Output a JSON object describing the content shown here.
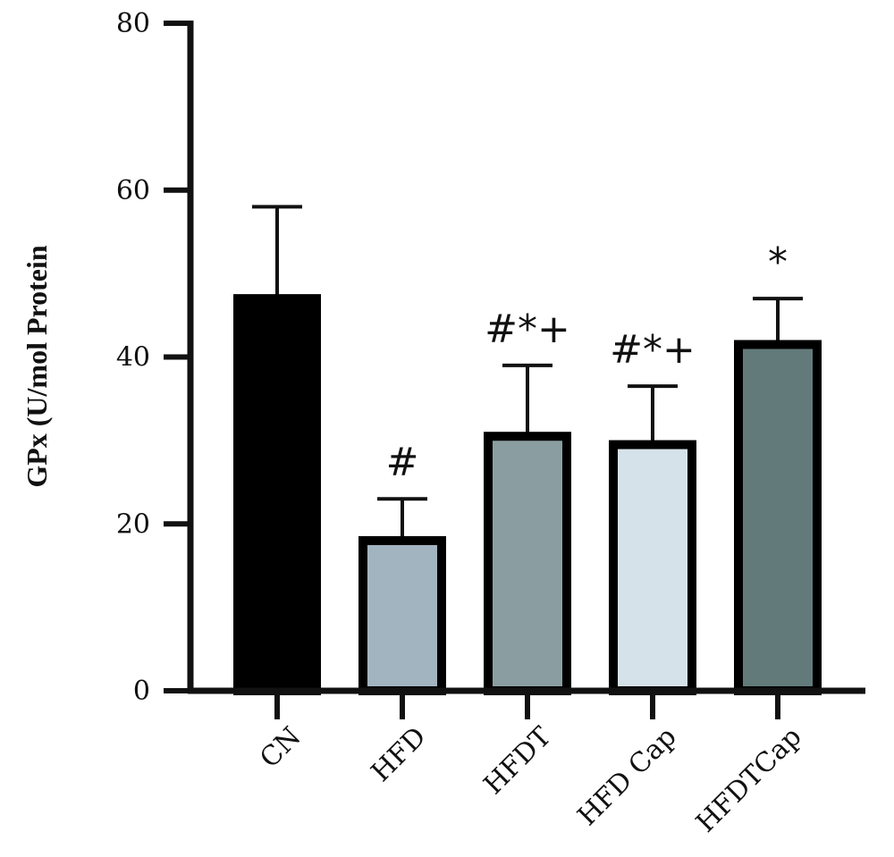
{
  "chart_data": {
    "type": "bar",
    "title": "",
    "xlabel": "",
    "ylabel": "GPx (U/mol Protein",
    "ylim": [
      0,
      80
    ],
    "yticks": [
      "0",
      "20",
      "40",
      "60",
      "80"
    ],
    "categories": [
      "CN",
      "HFD",
      "HFDT",
      "HFD Cap",
      "HFDTCap"
    ],
    "values": [
      47,
      18,
      30.5,
      29.5,
      41.5
    ],
    "errors": [
      11,
      5,
      8.5,
      7,
      5.5
    ],
    "annotations": [
      "",
      "#",
      "#*+",
      "#*+",
      "*"
    ],
    "bar_colors": [
      "#000000",
      "#a2b4c0",
      "#8a9ea2",
      "#d6e2e9",
      "#637a7b"
    ],
    "bar_outline_color": "#000000",
    "grid": false,
    "legend": "none"
  }
}
